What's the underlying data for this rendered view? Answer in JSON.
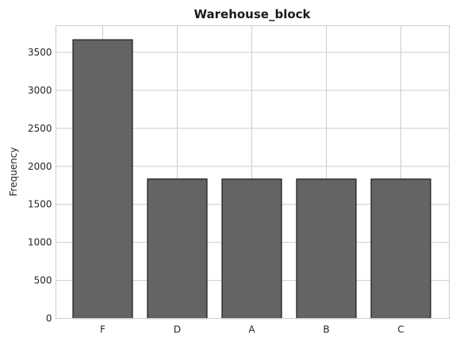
{
  "chart_data": {
    "type": "bar",
    "title": "Warehouse_block",
    "xlabel": "",
    "ylabel": "Frequency",
    "categories": [
      "F",
      "D",
      "A",
      "B",
      "C"
    ],
    "values": [
      3666,
      1834,
      1833,
      1833,
      1833
    ],
    "ylim": [
      0,
      3850
    ],
    "yticks": [
      0,
      500,
      1000,
      1500,
      2000,
      2500,
      3000,
      3500
    ],
    "grid": true,
    "legend": "none",
    "colors": {
      "bar": "#646464",
      "bar_edge": "#1a1a1a",
      "grid": "#cccccc"
    }
  }
}
